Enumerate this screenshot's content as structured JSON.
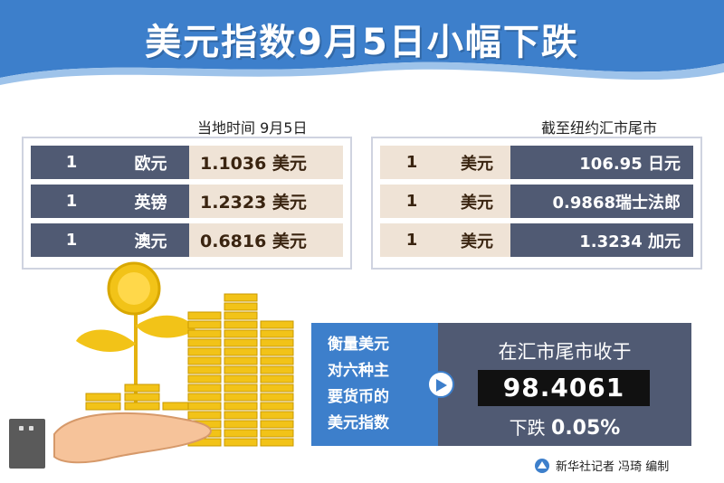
{
  "title": "美元指数9月5日小幅下跌",
  "left_panel": {
    "caption": "当地时间  9月5日",
    "rows": [
      {
        "num": "1",
        "currency": "欧元",
        "value": "1.1036 美元"
      },
      {
        "num": "1",
        "currency": "英镑",
        "value": "1.2323 美元"
      },
      {
        "num": "1",
        "currency": "澳元",
        "value": "0.6816 美元"
      }
    ]
  },
  "right_panel": {
    "caption": "截至纽约汇市尾市",
    "rows": [
      {
        "num": "1",
        "currency": "美元",
        "value": "106.95 日元"
      },
      {
        "num": "1",
        "currency": "美元",
        "value": "0.9868瑞士法郎"
      },
      {
        "num": "1",
        "currency": "美元",
        "value": "1.3234 加元"
      }
    ]
  },
  "index": {
    "description_lines": [
      "衡量美元",
      "对六种主",
      "要货币的",
      "美元指数"
    ],
    "label": "在汇市尾市收于",
    "value": "98.4061",
    "change_prefix": "下跌",
    "change_value": "0.05%"
  },
  "credit": "新华社记者 冯琦 编制",
  "colors": {
    "header_blue": "#3d7fcb",
    "dark_slate": "#505a73",
    "beige": "#efe3d6",
    "gold": "#f2c318"
  }
}
